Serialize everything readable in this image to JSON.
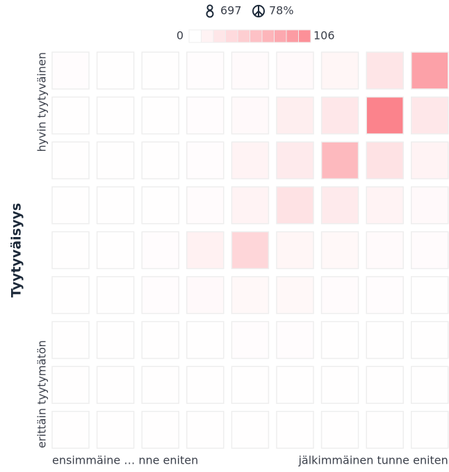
{
  "chart_data": {
    "type": "heatmap",
    "stats": [
      697,
      {
        "value": 78,
        "label": "78%"
      }
    ],
    "y_label": "Tyytyväisyys",
    "categories": [
      "ensimmäine … nne eniten",
      null,
      null,
      null,
      null,
      null,
      null,
      null,
      "jälkimmäinen tunne eniten"
    ],
    "rows": [
      "hyvin tyytyväinen",
      null,
      null,
      null,
      null,
      null,
      null,
      null,
      "erittäin tyytymätön"
    ],
    "values": [
      [
        2,
        1,
        1,
        2,
        4,
        5,
        8,
        22,
        80
      ],
      [
        1,
        1,
        1,
        2,
        5,
        15,
        20,
        106,
        20
      ],
      [
        1,
        1,
        1,
        2,
        10,
        18,
        60,
        25,
        10
      ],
      [
        1,
        1,
        1,
        3,
        10,
        25,
        18,
        10,
        5
      ],
      [
        1,
        1,
        2,
        12,
        35,
        8,
        6,
        4,
        3
      ],
      [
        1,
        1,
        2,
        5,
        6,
        6,
        3,
        2,
        1
      ],
      [
        1,
        1,
        1,
        1,
        2,
        2,
        1,
        1,
        1
      ],
      [
        1,
        1,
        1,
        1,
        1,
        1,
        1,
        1,
        1
      ],
      [
        1,
        1,
        1,
        1,
        1,
        1,
        1,
        1,
        1
      ]
    ],
    "zlim": [
      0,
      106
    ],
    "color": "#fb7c86"
  }
}
